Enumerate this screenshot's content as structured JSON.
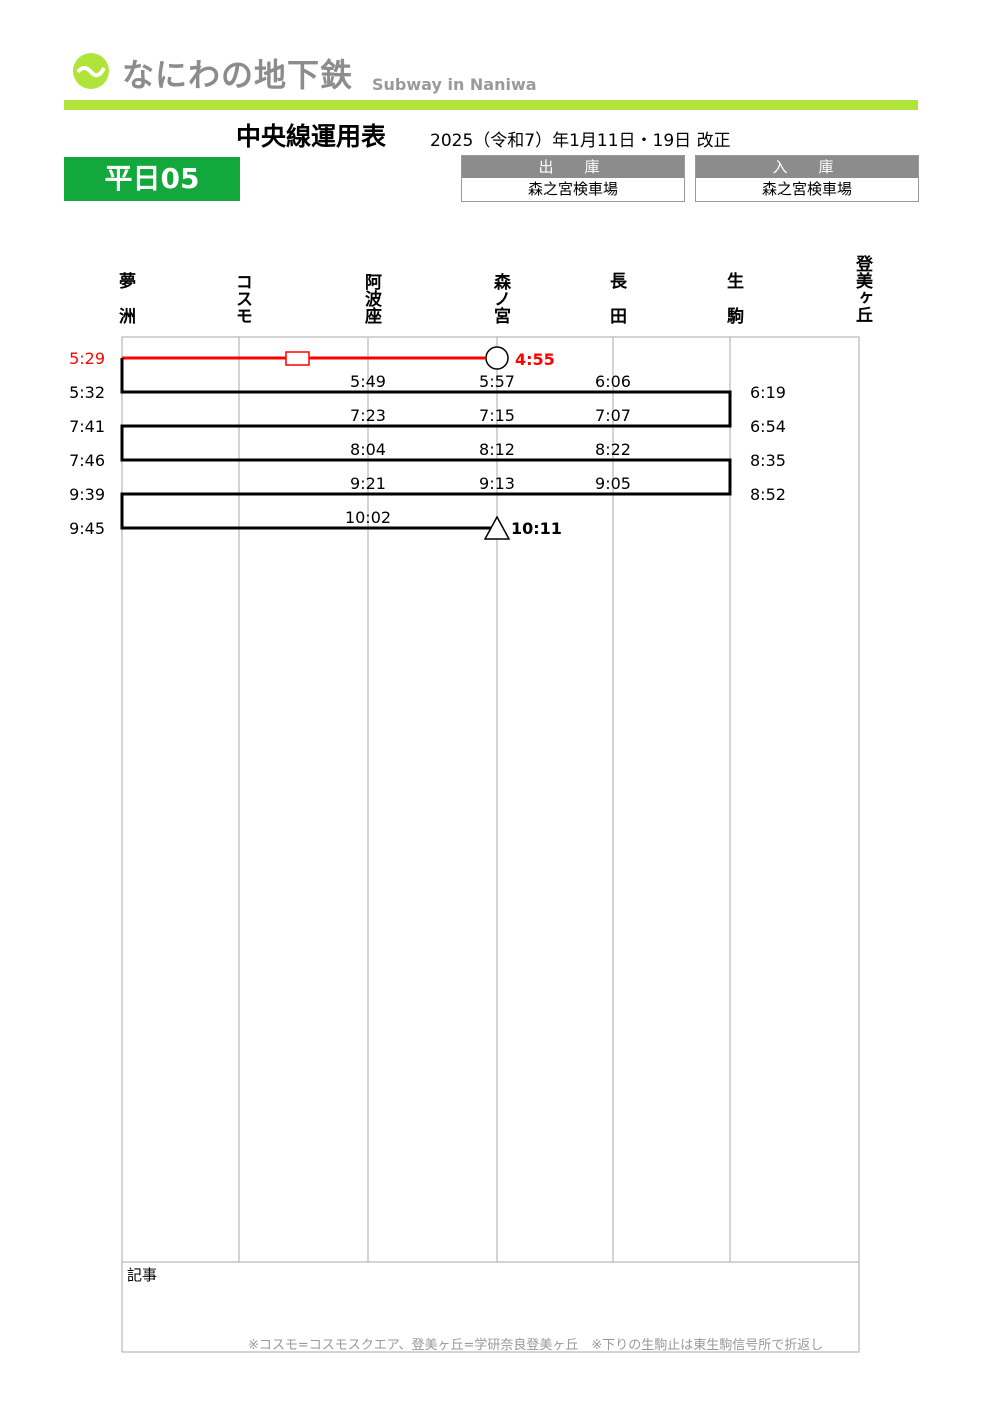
{
  "brand": {
    "name": "なにわの地下鉄",
    "subtitle": "Subway in Naniwa",
    "accent": "#b0e43a"
  },
  "header": {
    "title": "中央線運用表",
    "revision": "2025（令和7）年1月11日・19日 改正",
    "operation": "平日05",
    "operation_color": "#12a83c",
    "depart": {
      "label": "出　庫",
      "value": "森之宮検車場"
    },
    "enter": {
      "label": "入　庫",
      "value": "森之宮検車場"
    }
  },
  "stations": [
    "夢洲",
    "コスモ",
    "阿波座",
    "森ノ宮",
    "長田",
    "生駒",
    "登美ヶ丘"
  ],
  "left_times": [
    {
      "t": "5:29",
      "red": true
    },
    {
      "t": "5:32"
    },
    {
      "t": "7:41"
    },
    {
      "t": "7:46"
    },
    {
      "t": "9:39"
    },
    {
      "t": "9:45"
    }
  ],
  "right_times": [
    "6:19",
    "6:54",
    "8:35",
    "8:52"
  ],
  "mid_times": [
    [
      "5:49",
      "5:57",
      "6:06"
    ],
    [
      "7:23",
      "7:15",
      "7:07"
    ],
    [
      "8:04",
      "8:12",
      "8:22"
    ],
    [
      "9:21",
      "9:13",
      "9:05"
    ],
    [
      "10:02",
      "",
      ""
    ]
  ],
  "start_time": "4:55",
  "end_time": "10:11",
  "notes": {
    "label": "記事",
    "footnote": "※コスモ=コスモスクエア、登美ヶ丘=学研奈良登美ヶ丘　※下りの生駒止は東生駒信号所で折返し"
  }
}
